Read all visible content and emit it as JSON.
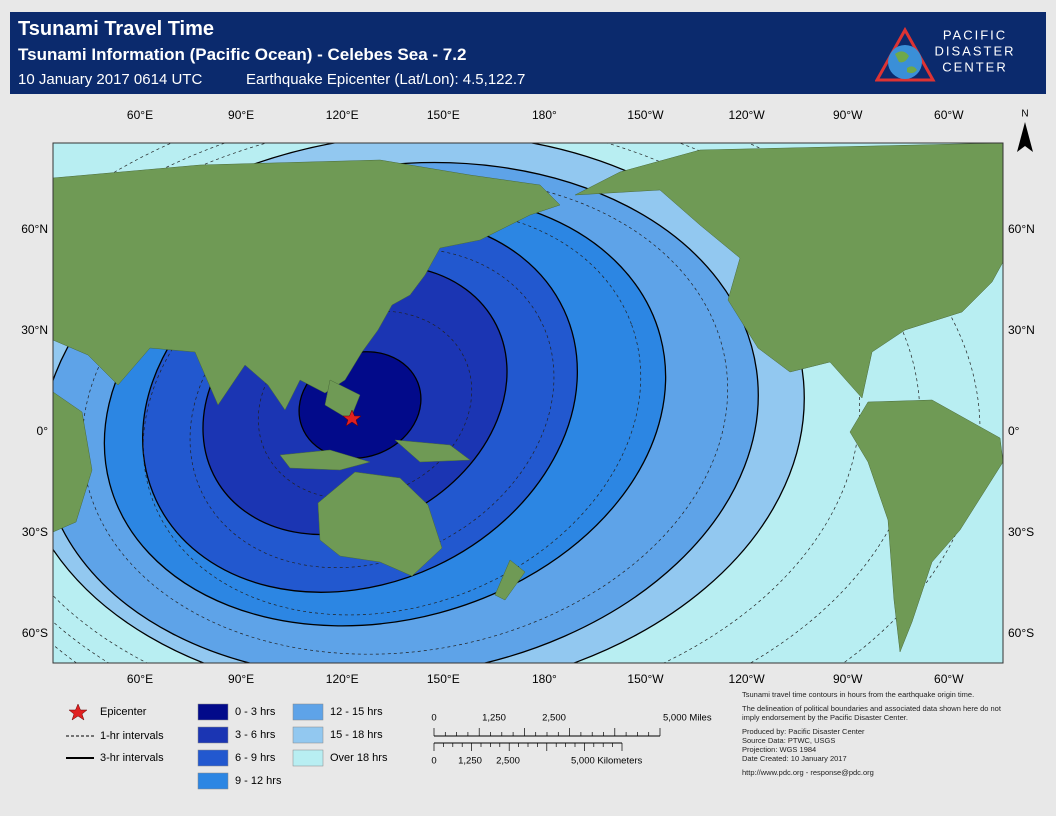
{
  "header": {
    "title": "Tsunami Travel Time",
    "subtitle": "Tsunami Information (Pacific Ocean) - Celebes Sea - 7.2",
    "date": "10 January 2017 0614 UTC",
    "epicenter": "Earthquake Epicenter (Lat/Lon): 4.5,122.7"
  },
  "logo": [
    "PACIFIC",
    "DISASTER",
    "CENTER"
  ],
  "map": {
    "north": "N",
    "lon_labels": [
      "60°E",
      "90°E",
      "120°E",
      "150°E",
      "180°",
      "150°W",
      "120°W",
      "90°W",
      "60°W"
    ],
    "lat_labels": [
      "60°N",
      "30°N",
      "0°",
      "30°S",
      "60°S"
    ]
  },
  "legend": {
    "epicenter": "Epicenter",
    "lines": [
      "1-hr intervals",
      "3-hr intervals"
    ],
    "classes": [
      {
        "label": "0 - 3 hrs",
        "color": "#020a8a"
      },
      {
        "label": "3 - 6 hrs",
        "color": "#1b35b3"
      },
      {
        "label": "6 - 9 hrs",
        "color": "#2258cf"
      },
      {
        "label": "9 - 12 hrs",
        "color": "#2c86e3"
      },
      {
        "label": "12 - 15 hrs",
        "color": "#5ea3e8"
      },
      {
        "label": "15 - 18 hrs",
        "color": "#92c8f0"
      },
      {
        "label": "Over 18 hrs",
        "color": "#b8eef2"
      }
    ]
  },
  "scale": {
    "miles": [
      "0",
      "1,250",
      "2,500",
      "5,000 Miles"
    ],
    "kilometers": [
      "0",
      "1,250",
      "2,500",
      "5,000 Kilometers"
    ]
  },
  "notes": [
    "Tsunami travel time contours in hours from the earthquake origin time.",
    "The delineation of political boundaries and associated data shown here do not imply endorsement by the Pacific Disaster Center.",
    "Produced by: Pacific Disaster Center",
    "Source Data: PTWC, USGS",
    "Projection: WGS 1984",
    "Date Created: 10 January 2017",
    "http://www.pdc.org - response@pdc.org"
  ]
}
